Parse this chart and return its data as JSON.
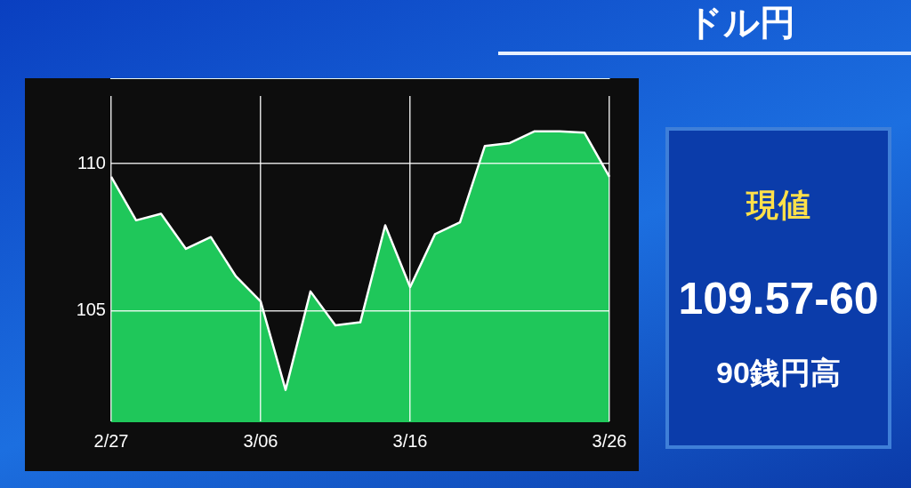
{
  "chart_data": {
    "type": "area",
    "title": "ドル円",
    "categories": [
      "2/27",
      null,
      null,
      null,
      null,
      null,
      "3/06",
      null,
      null,
      null,
      null,
      null,
      "3/16",
      null,
      null,
      null,
      null,
      null,
      null,
      null,
      "3/26"
    ],
    "series": [
      {
        "color": "#1fc75a",
        "values": [
          109.55,
          108.07,
          108.29,
          107.1,
          107.5,
          106.17,
          105.31,
          102.3,
          105.65,
          104.5,
          104.6,
          107.9,
          105.8,
          107.6,
          108.0,
          110.6,
          110.7,
          111.1,
          111.1,
          111.05,
          109.55
        ]
      }
    ],
    "ylim": [
      101.2,
      112.3
    ],
    "yticks": [
      105,
      110
    ],
    "grid": true,
    "annotations": [
      "現値",
      "109.57-60",
      "90銭円高"
    ]
  }
}
